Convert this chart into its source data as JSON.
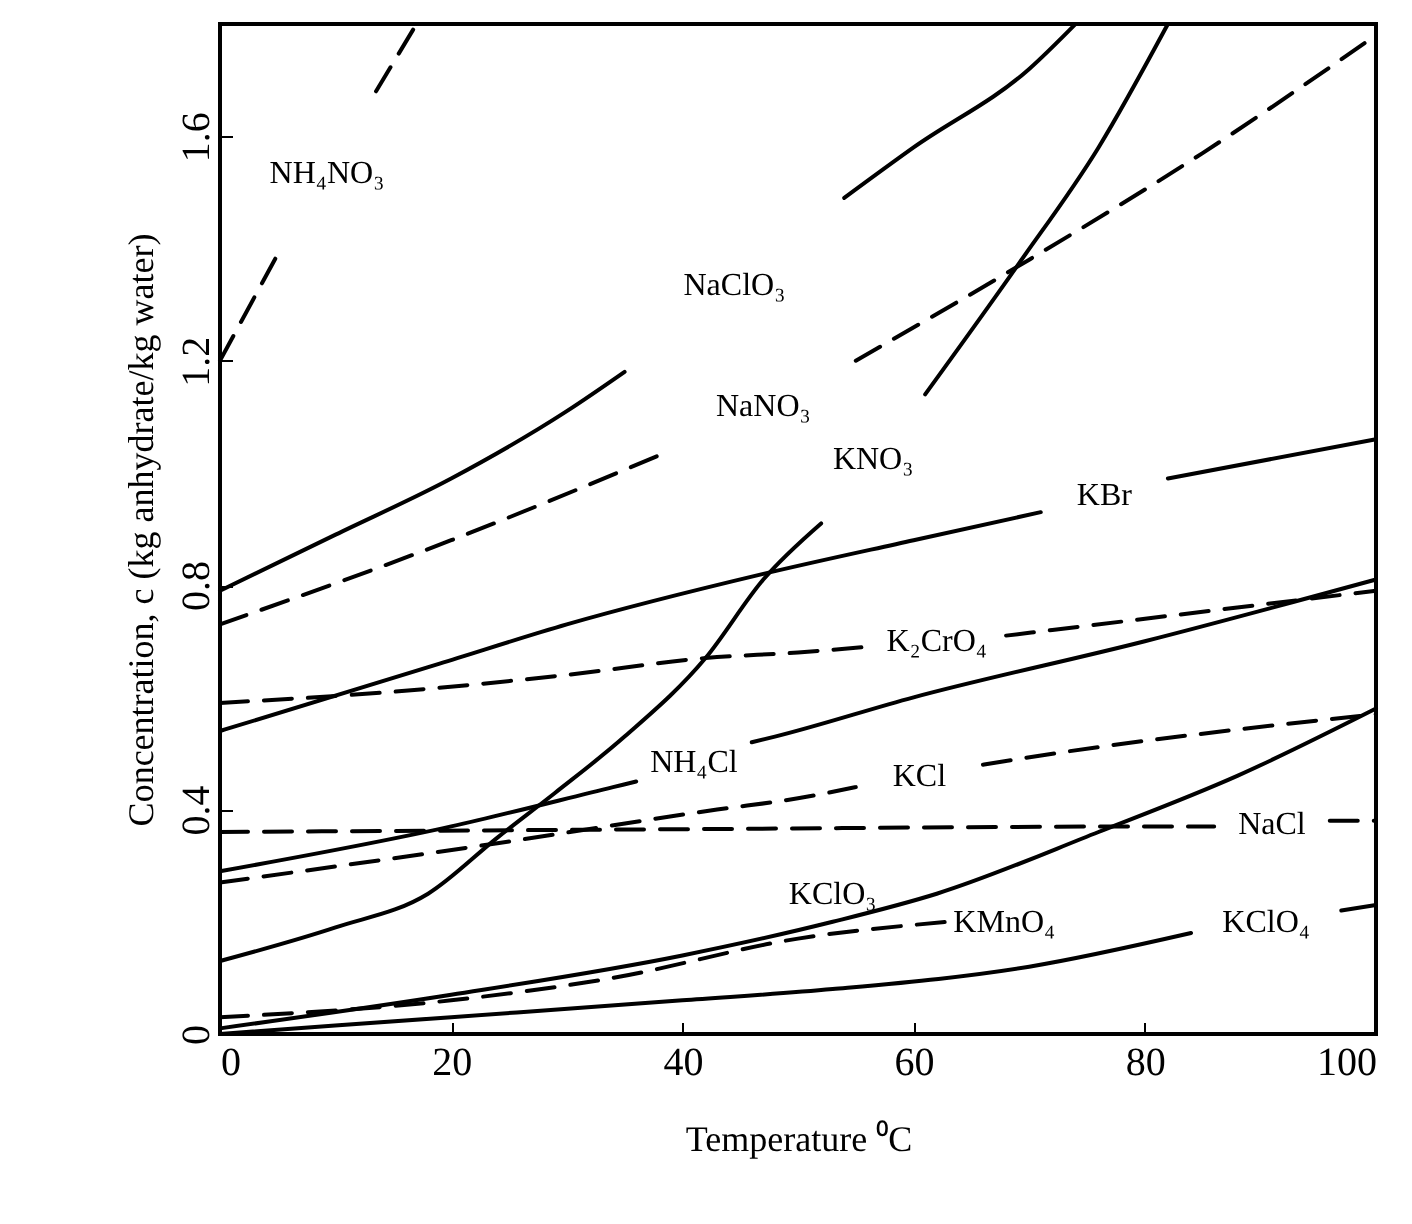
{
  "chart_data": {
    "type": "line",
    "xlabel": "Temperature ⁰C",
    "ylabel": "Concentration, c (kg anhydrate/kg water)",
    "xlim": [
      0,
      100
    ],
    "ylim": [
      0,
      1.8
    ],
    "xticks": [
      0,
      20,
      40,
      60,
      80,
      100
    ],
    "yticks": [
      0,
      {
        "value": 0.4,
        "label": "0.4"
      },
      {
        "value": 0.8,
        "label": "0.8"
      },
      {
        "value": 1.2,
        "label": "1.2"
      },
      {
        "value": 1.6,
        "label": "1.6"
      }
    ],
    "series": [
      {
        "name": "NH₄NO₃",
        "color": "#000000",
        "line_style": "dashed",
        "x": [
          0,
          5,
          9,
          13.5,
          17
        ],
        "values": [
          1.2,
          1.39,
          null,
          1.68,
          1.8
        ]
      },
      {
        "name": "NaClO₃",
        "color": "#000000",
        "line_style": "solid",
        "x": [
          0,
          10,
          20,
          30,
          35,
          45,
          54,
          60,
          70,
          74
        ],
        "values": [
          0.79,
          0.89,
          0.99,
          1.11,
          1.18,
          null,
          1.49,
          1.58,
          1.72,
          1.8
        ]
      },
      {
        "name": "NaNO₃",
        "color": "#000000",
        "line_style": "dashed",
        "x": [
          0,
          20,
          39,
          47,
          55,
          70,
          85,
          100
        ],
        "values": [
          0.73,
          0.88,
          1.04,
          null,
          1.2,
          1.38,
          1.57,
          1.78
        ]
      },
      {
        "name": "KNO₃",
        "color": "#000000",
        "line_style": "solid",
        "x": [
          0,
          10,
          18,
          24,
          29,
          35,
          42,
          47,
          52,
          56,
          61,
          69,
          76,
          82
        ],
        "values": [
          0.13,
          0.19,
          0.25,
          0.35,
          0.43,
          0.53,
          0.67,
          0.81,
          0.91,
          null,
          1.14,
          1.37,
          1.58,
          1.8
        ]
      },
      {
        "name": "KBr",
        "color": "#000000",
        "line_style": "solid",
        "x": [
          0,
          19,
          30,
          47,
          60,
          71,
          76,
          82,
          100
        ],
        "values": [
          0.54,
          0.66,
          0.73,
          0.82,
          0.88,
          0.93,
          null,
          0.99,
          1.06
        ]
      },
      {
        "name": "K₂CrO₄",
        "color": "#000000",
        "line_style": "dashed",
        "x": [
          0,
          15,
          30,
          42,
          50,
          56,
          62,
          68,
          72,
          100
        ],
        "values": [
          0.59,
          0.61,
          0.64,
          0.67,
          0.68,
          0.69,
          null,
          0.71,
          0.72,
          0.79
        ]
      },
      {
        "name": "NH₄Cl",
        "color": "#000000",
        "line_style": "solid",
        "x": [
          0,
          20,
          34,
          36,
          41,
          46,
          48,
          60,
          80,
          100
        ],
        "values": [
          0.29,
          0.37,
          0.44,
          0.45,
          null,
          0.52,
          0.53,
          0.6,
          0.7,
          0.81
        ]
      },
      {
        "name": "KCl",
        "color": "#000000",
        "line_style": "dashed",
        "x": [
          0,
          24,
          43,
          50,
          55,
          60,
          66,
          69,
          100
        ],
        "values": [
          0.27,
          0.34,
          0.4,
          0.42,
          0.44,
          null,
          0.48,
          0.49,
          0.57
        ]
      },
      {
        "name": "NaCl",
        "color": "#000000",
        "line_style": "dashed",
        "x": [
          0,
          40,
          83,
          86,
          91,
          96,
          97,
          100
        ],
        "values": [
          0.36,
          0.365,
          0.37,
          0.37,
          null,
          0.38,
          0.38,
          0.38
        ]
      },
      {
        "name": "KClO₃",
        "color": "#000000",
        "line_style": "solid",
        "x": [
          0,
          20,
          40,
          53,
          62,
          76,
          88,
          100
        ],
        "values": [
          0.01,
          0.07,
          0.14,
          0.2,
          0.25,
          0.36,
          0.46,
          0.58
        ]
      },
      {
        "name": "KMnO₄",
        "color": "#000000",
        "line_style": "dashed",
        "x": [
          0,
          20,
          34,
          50,
          63
        ],
        "values": [
          0.03,
          0.06,
          0.1,
          0.17,
          0.2
        ]
      },
      {
        "name": "KClO₄",
        "color": "#000000",
        "line_style": "solid",
        "x": [
          0,
          20,
          40,
          53,
          70,
          84,
          90,
          97,
          100
        ],
        "values": [
          0.0,
          0.03,
          0.06,
          0.08,
          0.12,
          0.18,
          null,
          0.22,
          0.23
        ]
      }
    ]
  }
}
